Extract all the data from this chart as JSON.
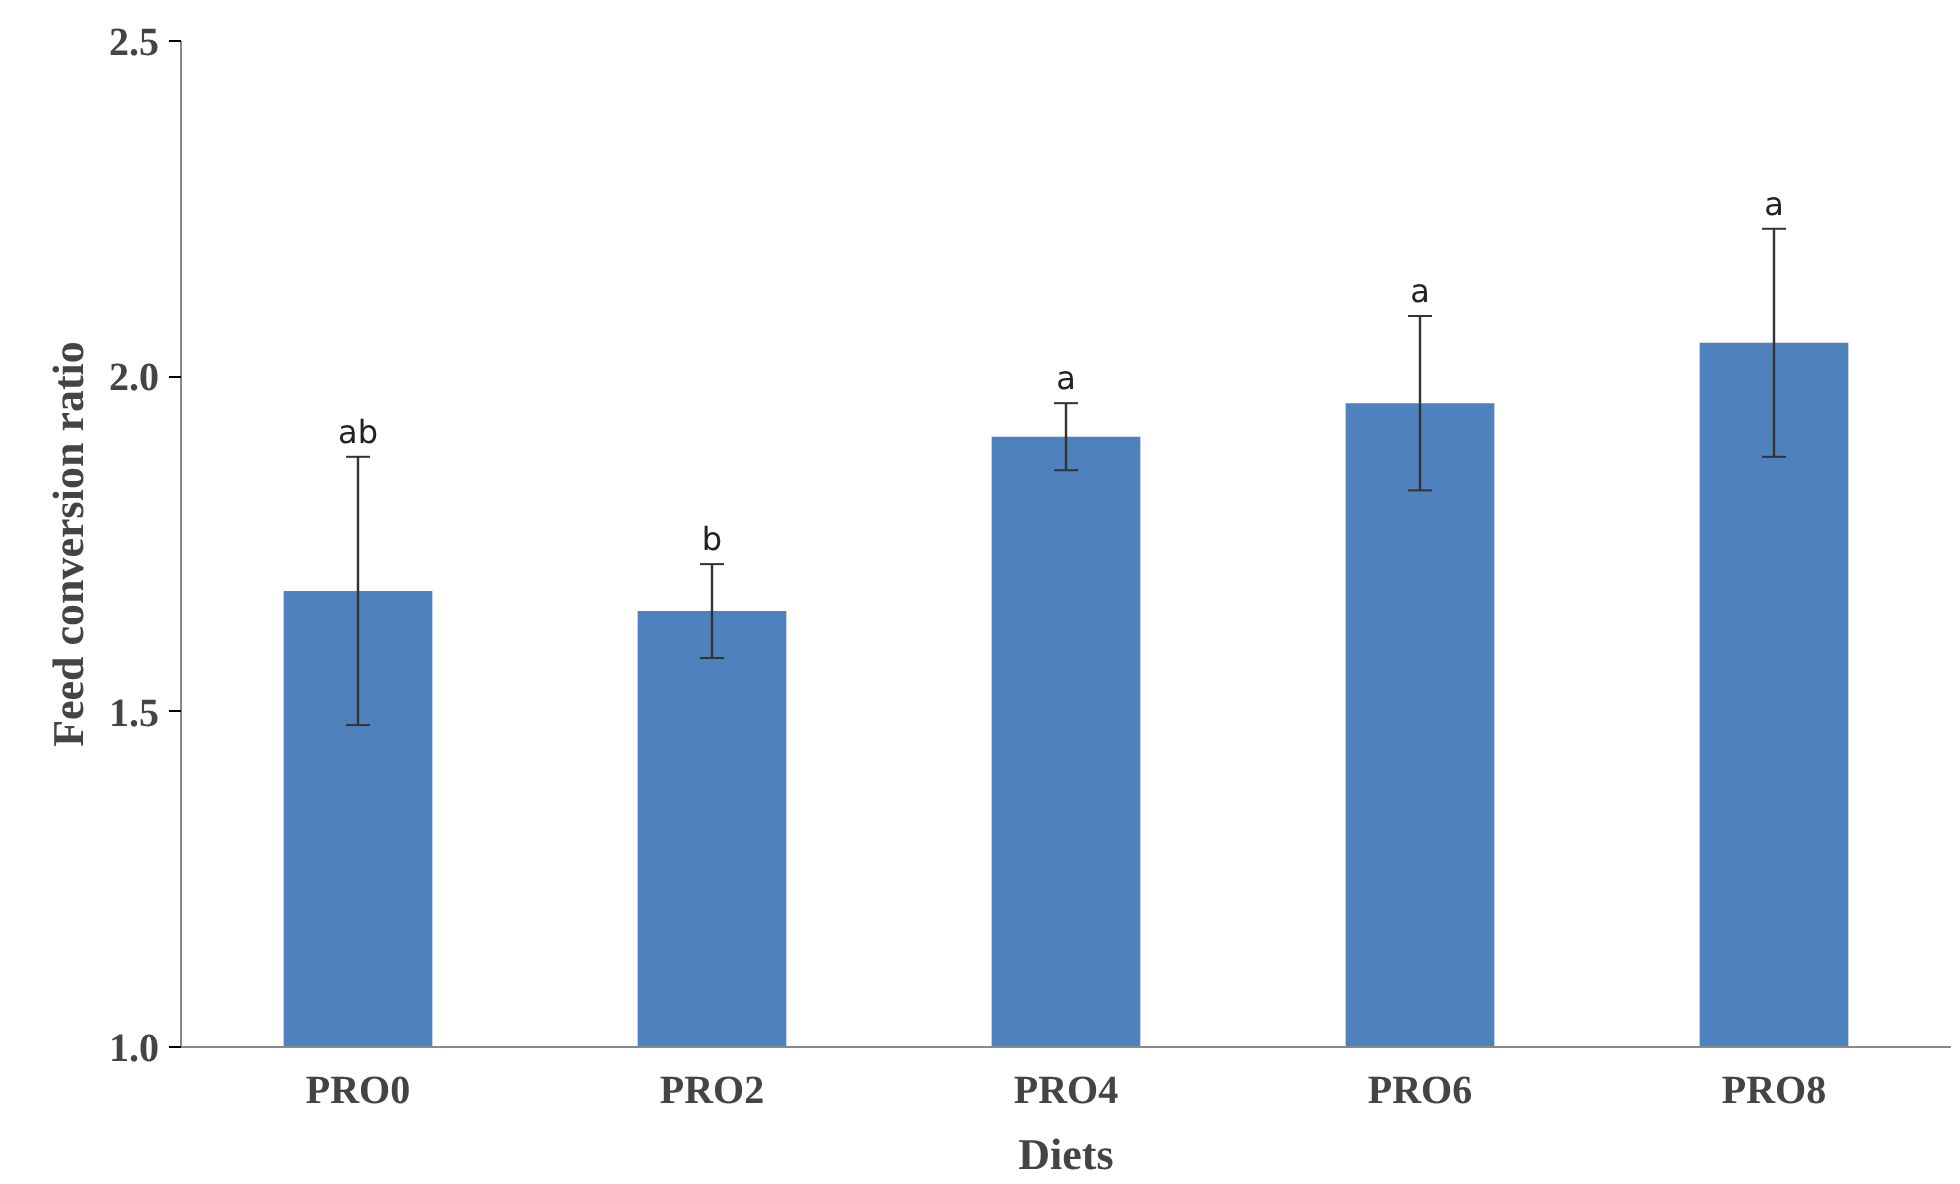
{
  "chart_data": {
    "type": "bar",
    "xlabel": "Diets",
    "ylabel": "Feed conversion ratio",
    "categories": [
      "PRO0",
      "PRO2",
      "PRO4",
      "PRO6",
      "PRO8"
    ],
    "values": [
      1.68,
      1.65,
      1.91,
      1.96,
      2.05
    ],
    "errors": [
      0.2,
      0.07,
      0.05,
      0.13,
      0.17
    ],
    "color": "#4f81bd",
    "ylim": [
      1.0,
      2.5
    ],
    "yticks": [
      {
        "value": 1.0,
        "label": "1.0"
      },
      {
        "value": 1.5,
        "label": "1.5"
      },
      {
        "value": 2.0,
        "label": "2.0"
      },
      {
        "value": 2.5,
        "label": "2.5"
      }
    ],
    "grid": false,
    "annotations": [
      {
        "text": "ab",
        "x": "PRO0",
        "y": 1.88
      },
      {
        "text": "b",
        "x": "PRO2",
        "y": 1.72
      },
      {
        "text": "a",
        "x": "PRO4",
        "y": 1.96
      },
      {
        "text": "a",
        "x": "PRO6",
        "y": 2.09
      },
      {
        "text": "a",
        "x": "PRO8",
        "y": 2.22
      }
    ]
  }
}
